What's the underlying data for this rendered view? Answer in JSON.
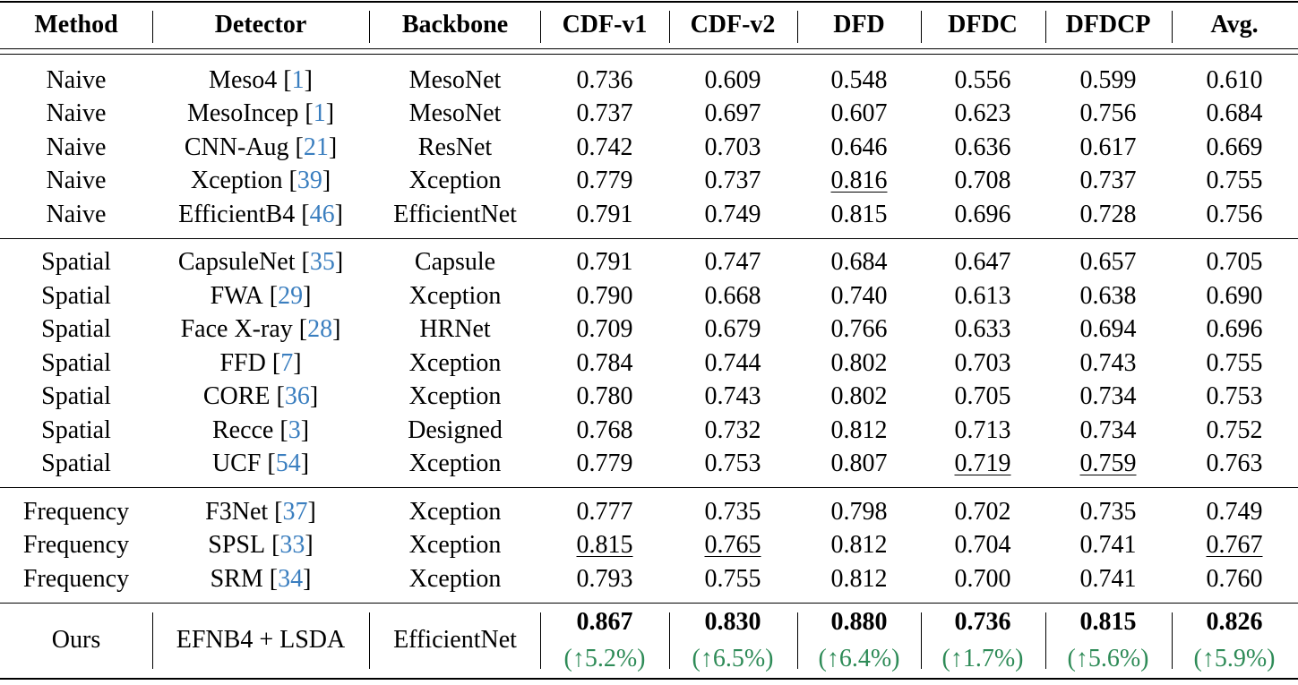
{
  "table": {
    "columns": [
      "Method",
      "Detector",
      "Backbone",
      "CDF-v1",
      "CDF-v2",
      "DFD",
      "DFDC",
      "DFDCP",
      "Avg."
    ],
    "citation_brackets": [
      "[",
      "]"
    ],
    "groups": [
      {
        "rows": [
          {
            "method": "Naive",
            "detector": "Meso4",
            "ref": "1",
            "backbone": "MesoNet",
            "scores": [
              "0.736",
              "0.609",
              "0.548",
              "0.556",
              "0.599",
              "0.610"
            ]
          },
          {
            "method": "Naive",
            "detector": "MesoIncep",
            "ref": "1",
            "backbone": "MesoNet",
            "scores": [
              "0.737",
              "0.697",
              "0.607",
              "0.623",
              "0.756",
              "0.684"
            ]
          },
          {
            "method": "Naive",
            "detector": "CNN-Aug",
            "ref": "21",
            "backbone": "ResNet",
            "scores": [
              "0.742",
              "0.703",
              "0.646",
              "0.636",
              "0.617",
              "0.669"
            ]
          },
          {
            "method": "Naive",
            "detector": "Xception",
            "ref": "39",
            "backbone": "Xception",
            "scores": [
              "0.779",
              "0.737",
              "0.816",
              "0.708",
              "0.737",
              "0.755"
            ],
            "underlined": [
              2
            ]
          },
          {
            "method": "Naive",
            "detector": "EfficientB4",
            "ref": "46",
            "backbone": "EfficientNet",
            "scores": [
              "0.791",
              "0.749",
              "0.815",
              "0.696",
              "0.728",
              "0.756"
            ]
          }
        ]
      },
      {
        "rows": [
          {
            "method": "Spatial",
            "detector": "CapsuleNet",
            "ref": "35",
            "backbone": "Capsule",
            "scores": [
              "0.791",
              "0.747",
              "0.684",
              "0.647",
              "0.657",
              "0.705"
            ]
          },
          {
            "method": "Spatial",
            "detector": "FWA",
            "ref": "29",
            "backbone": "Xception",
            "scores": [
              "0.790",
              "0.668",
              "0.740",
              "0.613",
              "0.638",
              "0.690"
            ]
          },
          {
            "method": "Spatial",
            "detector": "Face X-ray",
            "ref": "28",
            "backbone": "HRNet",
            "scores": [
              "0.709",
              "0.679",
              "0.766",
              "0.633",
              "0.694",
              "0.696"
            ]
          },
          {
            "method": "Spatial",
            "detector": "FFD",
            "ref": "7",
            "backbone": "Xception",
            "scores": [
              "0.784",
              "0.744",
              "0.802",
              "0.703",
              "0.743",
              "0.755"
            ]
          },
          {
            "method": "Spatial",
            "detector": "CORE",
            "ref": "36",
            "backbone": "Xception",
            "scores": [
              "0.780",
              "0.743",
              "0.802",
              "0.705",
              "0.734",
              "0.753"
            ]
          },
          {
            "method": "Spatial",
            "detector": "Recce",
            "ref": "3",
            "backbone": "Designed",
            "scores": [
              "0.768",
              "0.732",
              "0.812",
              "0.713",
              "0.734",
              "0.752"
            ]
          },
          {
            "method": "Spatial",
            "detector": "UCF",
            "ref": "54",
            "backbone": "Xception",
            "scores": [
              "0.779",
              "0.753",
              "0.807",
              "0.719",
              "0.759",
              "0.763"
            ],
            "underlined": [
              3,
              4
            ]
          }
        ]
      },
      {
        "rows": [
          {
            "method": "Frequency",
            "detector": "F3Net",
            "ref": "37",
            "backbone": "Xception",
            "scores": [
              "0.777",
              "0.735",
              "0.798",
              "0.702",
              "0.735",
              "0.749"
            ]
          },
          {
            "method": "Frequency",
            "detector": "SPSL",
            "ref": "33",
            "backbone": "Xception",
            "scores": [
              "0.815",
              "0.765",
              "0.812",
              "0.704",
              "0.741",
              "0.767"
            ],
            "underlined": [
              0,
              1,
              5
            ]
          },
          {
            "method": "Frequency",
            "detector": "SRM",
            "ref": "34",
            "backbone": "Xception",
            "scores": [
              "0.793",
              "0.755",
              "0.812",
              "0.700",
              "0.741",
              "0.760"
            ]
          }
        ]
      }
    ],
    "ours": {
      "method": "Ours",
      "detector": "EFNB4 + LSDA",
      "backbone": "EfficientNet",
      "scores": [
        "0.867",
        "0.830",
        "0.880",
        "0.736",
        "0.815",
        "0.826"
      ],
      "gains": [
        "(↑5.2%)",
        "(↑6.5%)",
        "(↑6.4%)",
        "(↑1.7%)",
        "(↑5.6%)",
        "(↑5.9%)"
      ]
    }
  }
}
